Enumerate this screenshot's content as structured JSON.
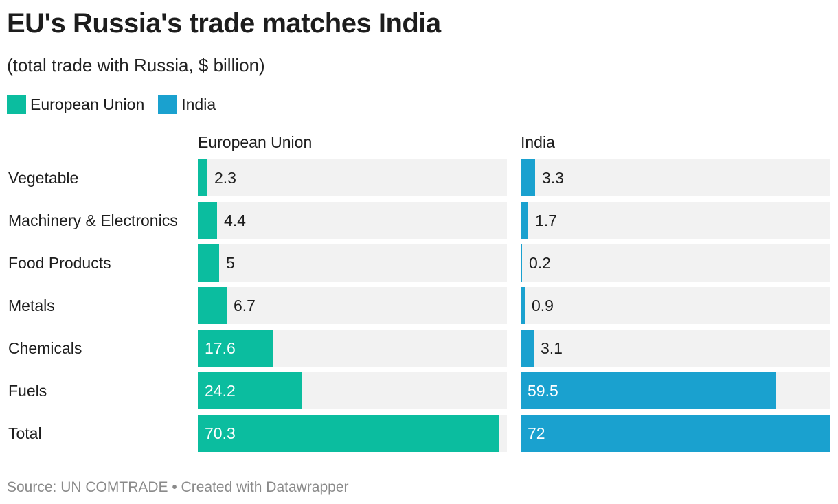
{
  "title": "EU's Russia's trade matches India",
  "subtitle": "(total trade with Russia, $ billion)",
  "legend": [
    {
      "label": "European Union",
      "color": "#0bbd9f"
    },
    {
      "label": "India",
      "color": "#1aa1cf"
    }
  ],
  "footer": "Source: UN COMTRADE • Created with Datawrapper",
  "chart_data": {
    "type": "bar",
    "orientation": "horizontal",
    "title": "EU's Russia's trade matches India",
    "subtitle": "(total trade with Russia, $ billion)",
    "categories": [
      "Vegetable",
      "Machinery & Electronics",
      "Food Products",
      "Metals",
      "Chemicals",
      "Fuels",
      "Total"
    ],
    "series": [
      {
        "name": "European Union",
        "color": "#0bbd9f",
        "values": [
          2.3,
          4.4,
          5,
          6.7,
          17.6,
          24.2,
          70.3
        ]
      },
      {
        "name": "India",
        "color": "#1aa1cf",
        "values": [
          3.3,
          1.7,
          0.2,
          0.9,
          3.1,
          59.5,
          72
        ]
      }
    ],
    "value_labels": [
      [
        "2.3",
        "4.4",
        "5",
        "6.7",
        "17.6",
        "24.2",
        "70.3"
      ],
      [
        "3.3",
        "1.7",
        "0.2",
        "0.9",
        "3.1",
        "59.5",
        "72"
      ]
    ],
    "xlim": [
      0,
      72
    ],
    "grid": false,
    "legend_position": "top-left"
  }
}
